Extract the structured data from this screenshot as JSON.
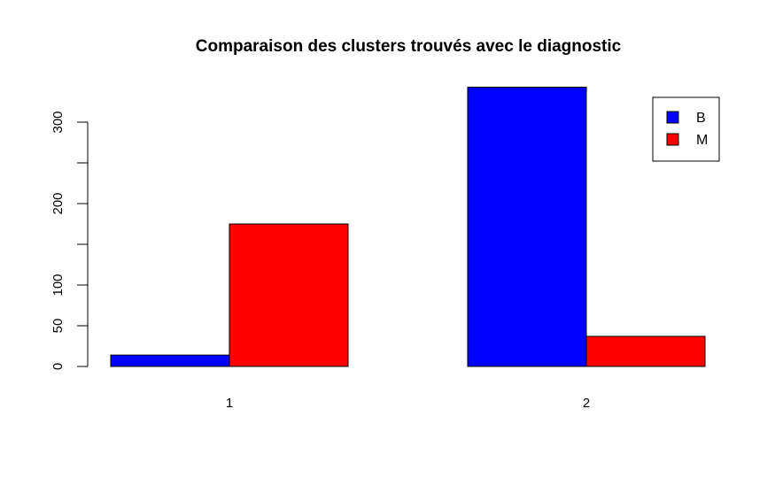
{
  "chart_data": {
    "type": "bar",
    "title": "Comparaison des clusters trouvés avec le diagnostic",
    "xlabel": "",
    "ylabel": "",
    "categories": [
      "1",
      "2"
    ],
    "series": [
      {
        "name": "B",
        "color": "#0000ff",
        "values": [
          14,
          343
        ]
      },
      {
        "name": "M",
        "color": "#ff0000",
        "values": [
          175,
          37
        ]
      }
    ],
    "y_ticks": [
      0,
      50,
      100,
      200,
      300
    ],
    "y_minor_ticks": [
      150,
      250
    ],
    "ylim": [
      0,
      343
    ],
    "grid": false,
    "legend_position": "top-right"
  }
}
